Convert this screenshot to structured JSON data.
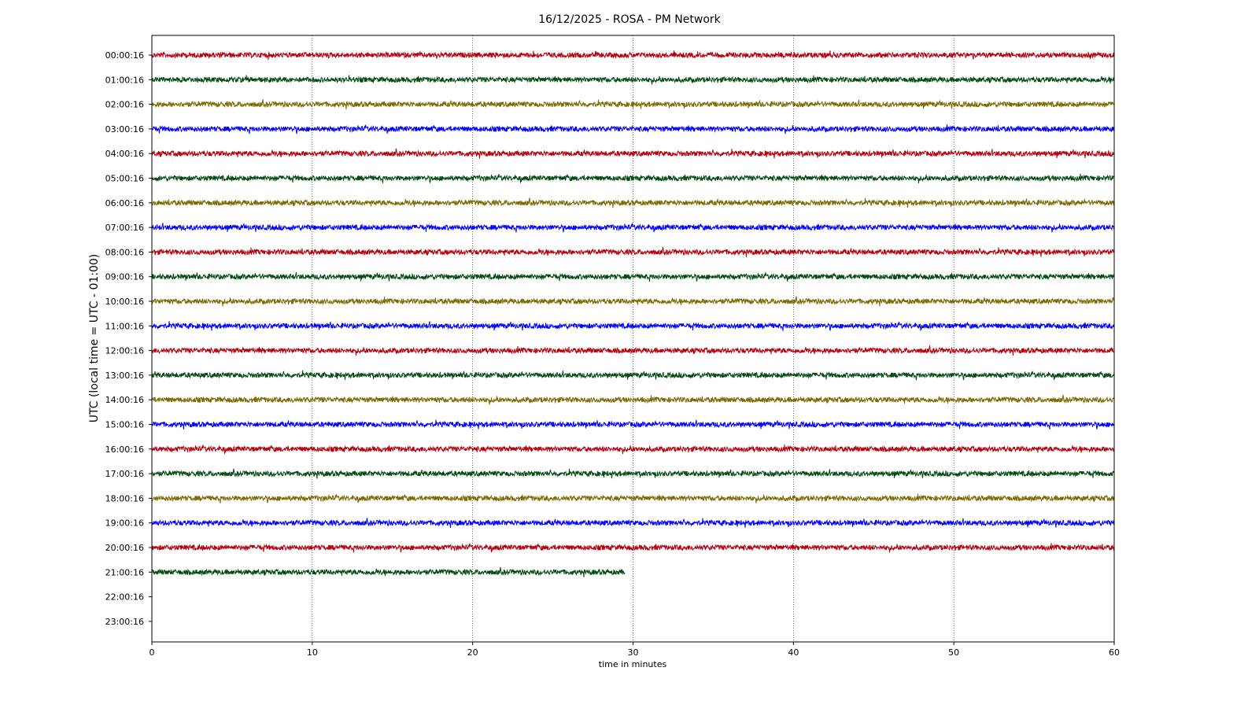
{
  "chart_data": {
    "type": "line",
    "title": "16/12/2025 - ROSA - PM Network",
    "xlabel": "time in minutes",
    "ylabel": "UTC (local time = UTC - 01:00)",
    "xlim": [
      0,
      60
    ],
    "x_ticks": [
      "0",
      "10",
      "20",
      "30",
      "40",
      "50",
      "60"
    ],
    "grid": "vertical dotted lines at x ticks",
    "colors": [
      "#b5000e",
      "#004a12",
      "#7a6a00",
      "#0000ff"
    ],
    "rows": [
      {
        "label": "00:00:16",
        "minutes": 60,
        "color": "#b5000e"
      },
      {
        "label": "01:00:16",
        "minutes": 60,
        "color": "#004a12"
      },
      {
        "label": "02:00:16",
        "minutes": 60,
        "color": "#7a6a00"
      },
      {
        "label": "03:00:16",
        "minutes": 60,
        "color": "#0000ff"
      },
      {
        "label": "04:00:16",
        "minutes": 60,
        "color": "#b5000e"
      },
      {
        "label": "05:00:16",
        "minutes": 60,
        "color": "#004a12"
      },
      {
        "label": "06:00:16",
        "minutes": 60,
        "color": "#7a6a00"
      },
      {
        "label": "07:00:16",
        "minutes": 60,
        "color": "#0000ff"
      },
      {
        "label": "08:00:16",
        "minutes": 60,
        "color": "#b5000e"
      },
      {
        "label": "09:00:16",
        "minutes": 60,
        "color": "#004a12"
      },
      {
        "label": "10:00:16",
        "minutes": 60,
        "color": "#7a6a00"
      },
      {
        "label": "11:00:16",
        "minutes": 60,
        "color": "#0000ff"
      },
      {
        "label": "12:00:16",
        "minutes": 60,
        "color": "#b5000e"
      },
      {
        "label": "13:00:16",
        "minutes": 60,
        "color": "#004a12"
      },
      {
        "label": "14:00:16",
        "minutes": 60,
        "color": "#7a6a00"
      },
      {
        "label": "15:00:16",
        "minutes": 60,
        "color": "#0000ff"
      },
      {
        "label": "16:00:16",
        "minutes": 60,
        "color": "#b5000e"
      },
      {
        "label": "17:00:16",
        "minutes": 60,
        "color": "#004a12"
      },
      {
        "label": "18:00:16",
        "minutes": 60,
        "color": "#7a6a00"
      },
      {
        "label": "19:00:16",
        "minutes": 60,
        "color": "#0000ff"
      },
      {
        "label": "20:00:16",
        "minutes": 60,
        "color": "#b5000e"
      },
      {
        "label": "21:00:16",
        "minutes": 29.5,
        "color": "#004a12"
      },
      {
        "label": "22:00:16",
        "minutes": 0,
        "color": "#7a6a00"
      },
      {
        "label": "23:00:16",
        "minutes": 0,
        "color": "#0000ff"
      }
    ]
  }
}
